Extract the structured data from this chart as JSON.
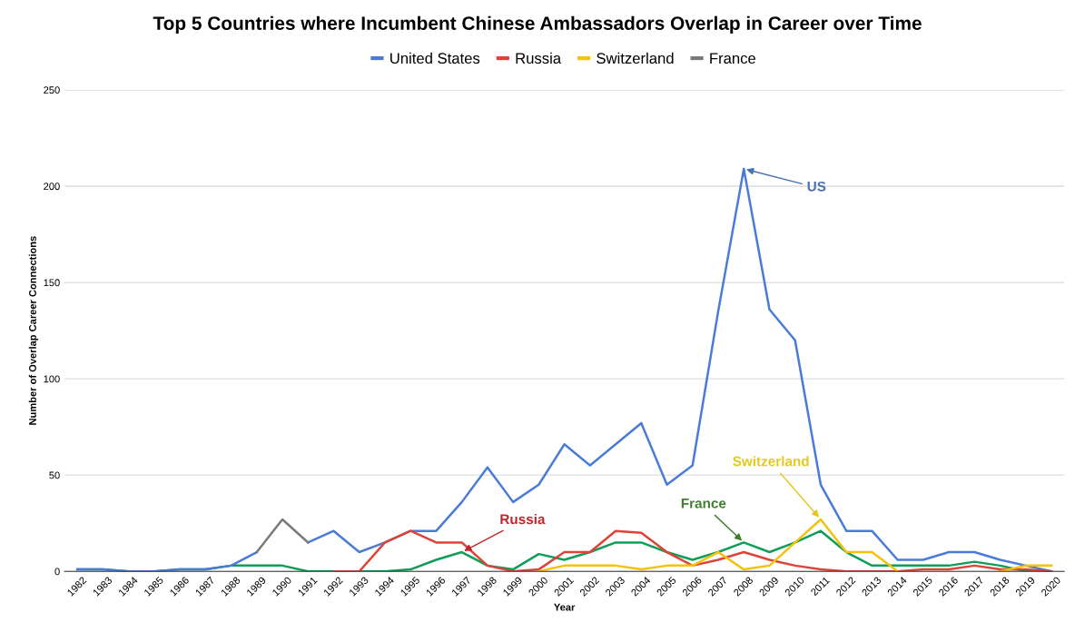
{
  "chart_data": {
    "type": "line",
    "title": "Top 5 Countries where Incumbent Chinese Ambassadors Overlap in Career over Time",
    "xlabel": "Year",
    "ylabel": "Number of Overlap Career Connections",
    "categories": [
      "1982",
      "1983",
      "1984",
      "1985",
      "1986",
      "1987",
      "1988",
      "1989",
      "1990",
      "1991",
      "1992",
      "1993",
      "1994",
      "1995",
      "1996",
      "1997",
      "1998",
      "1999",
      "2000",
      "2001",
      "2002",
      "2003",
      "2004",
      "2005",
      "2006",
      "2007",
      "2008",
      "2009",
      "2010",
      "2011",
      "2012",
      "2013",
      "2014",
      "2015",
      "2016",
      "2017",
      "2018",
      "2019",
      "2020"
    ],
    "series": [
      {
        "color": "#0f9d58",
        "values": [
          1,
          1,
          0,
          0,
          1,
          1,
          3,
          3,
          3,
          0,
          0,
          0,
          0,
          1,
          6,
          10,
          3,
          1,
          9,
          6,
          10,
          15,
          15,
          10,
          6,
          10,
          15,
          10,
          15,
          21,
          10,
          3,
          3,
          3,
          3,
          5,
          3,
          0,
          0
        ]
      },
      {
        "name": "United States",
        "color": "#4a7bd9",
        "values": [
          1,
          1,
          0,
          0,
          1,
          1,
          3,
          10,
          null,
          15,
          21,
          10,
          15,
          21,
          21,
          36,
          54,
          36,
          45,
          66,
          55,
          66,
          77,
          45,
          55,
          135,
          209,
          136,
          120,
          45,
          21,
          21,
          6,
          6,
          10,
          10,
          6,
          3,
          0
        ]
      },
      {
        "name": "Russia",
        "color": "#db4437",
        "values": [
          null,
          null,
          null,
          null,
          null,
          null,
          null,
          null,
          null,
          null,
          0,
          0,
          15,
          21,
          15,
          15,
          3,
          0,
          1,
          10,
          10,
          21,
          20,
          10,
          3,
          6,
          10,
          6,
          3,
          1,
          0,
          0,
          0,
          1,
          1,
          3,
          1,
          1,
          0
        ]
      },
      {
        "name": "Switzerland",
        "color": "#f4c20d",
        "values": [
          null,
          null,
          null,
          null,
          null,
          null,
          null,
          null,
          null,
          null,
          null,
          null,
          null,
          null,
          null,
          null,
          null,
          null,
          0,
          3,
          3,
          3,
          1,
          3,
          3,
          10,
          1,
          3,
          15,
          27,
          10,
          10,
          0,
          null,
          null,
          null,
          0,
          3,
          3
        ]
      },
      {
        "name": "France",
        "color": "#7a7a7a",
        "values": [
          null,
          null,
          null,
          null,
          null,
          null,
          null,
          10,
          27,
          15,
          null,
          null,
          null,
          null,
          null,
          null,
          null,
          null,
          null,
          null,
          null,
          null,
          null,
          null,
          null,
          null,
          null,
          null,
          null,
          null,
          null,
          null,
          null,
          null,
          null,
          null,
          null,
          null,
          null
        ]
      }
    ],
    "ylim": [
      0,
      250
    ],
    "yticks": [
      0,
      50,
      100,
      150,
      200,
      250
    ],
    "grid": "y",
    "legend": "top",
    "annotations": [
      {
        "text": "US",
        "x": "2008",
        "y": 209
      },
      {
        "text": "Russia",
        "x": "1997",
        "y": 10
      },
      {
        "text": "France",
        "x": "2008",
        "y": 15
      },
      {
        "text": "Switzerland",
        "x": "2011",
        "y": 27
      }
    ]
  }
}
